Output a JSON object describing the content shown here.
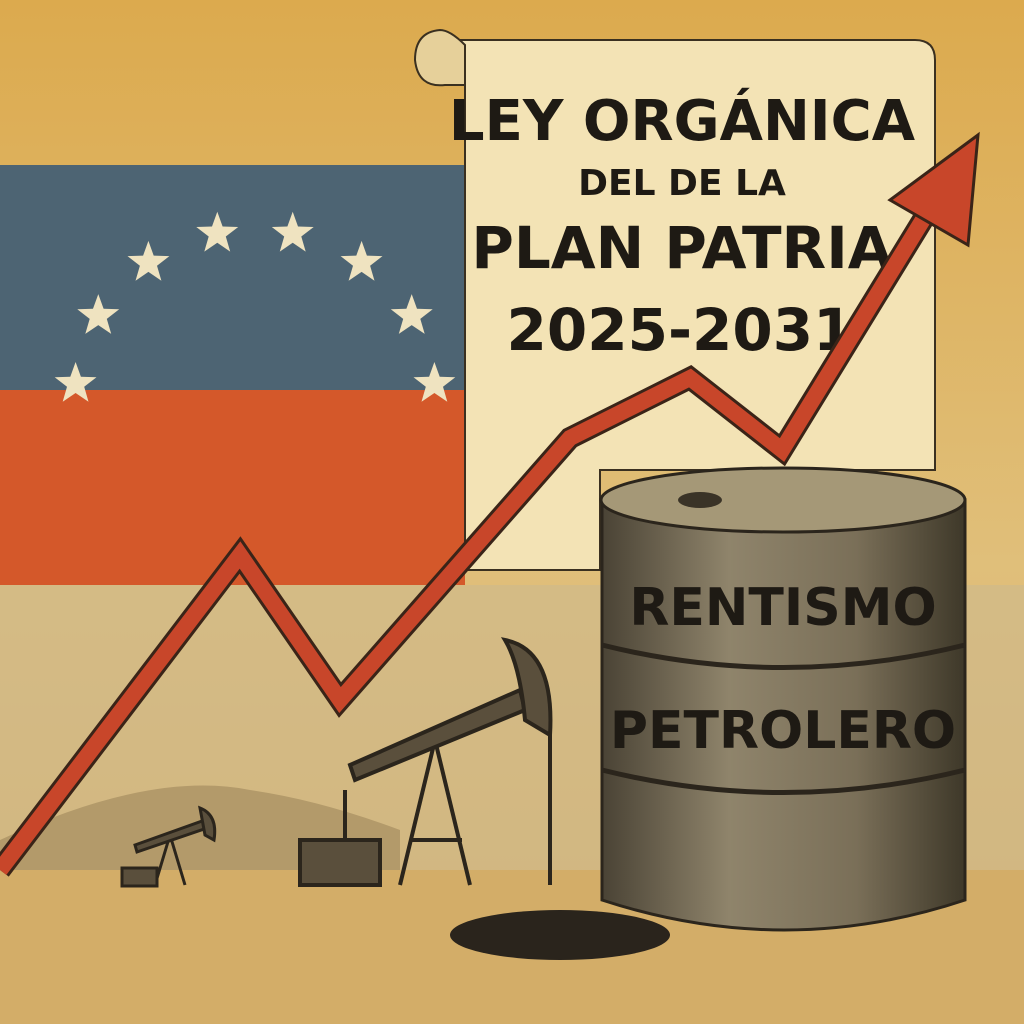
{
  "scroll": {
    "line1": "LEY ORGÁNICA",
    "line2": "DEL DE LA",
    "line3": "PLAN PATRIA",
    "line4": "2025-2031"
  },
  "barrel": {
    "line1": "RENTISMO",
    "line2": "PETROLERO"
  },
  "colors": {
    "background": "#dcb45f",
    "flag_blue": "#4d6473",
    "flag_red": "#d4582a",
    "arrow": "#c8462a",
    "scroll": "#f3e3b5",
    "barrel": "#6f6452",
    "ink": "#1e1a14"
  },
  "flag": {
    "stars": 8
  }
}
